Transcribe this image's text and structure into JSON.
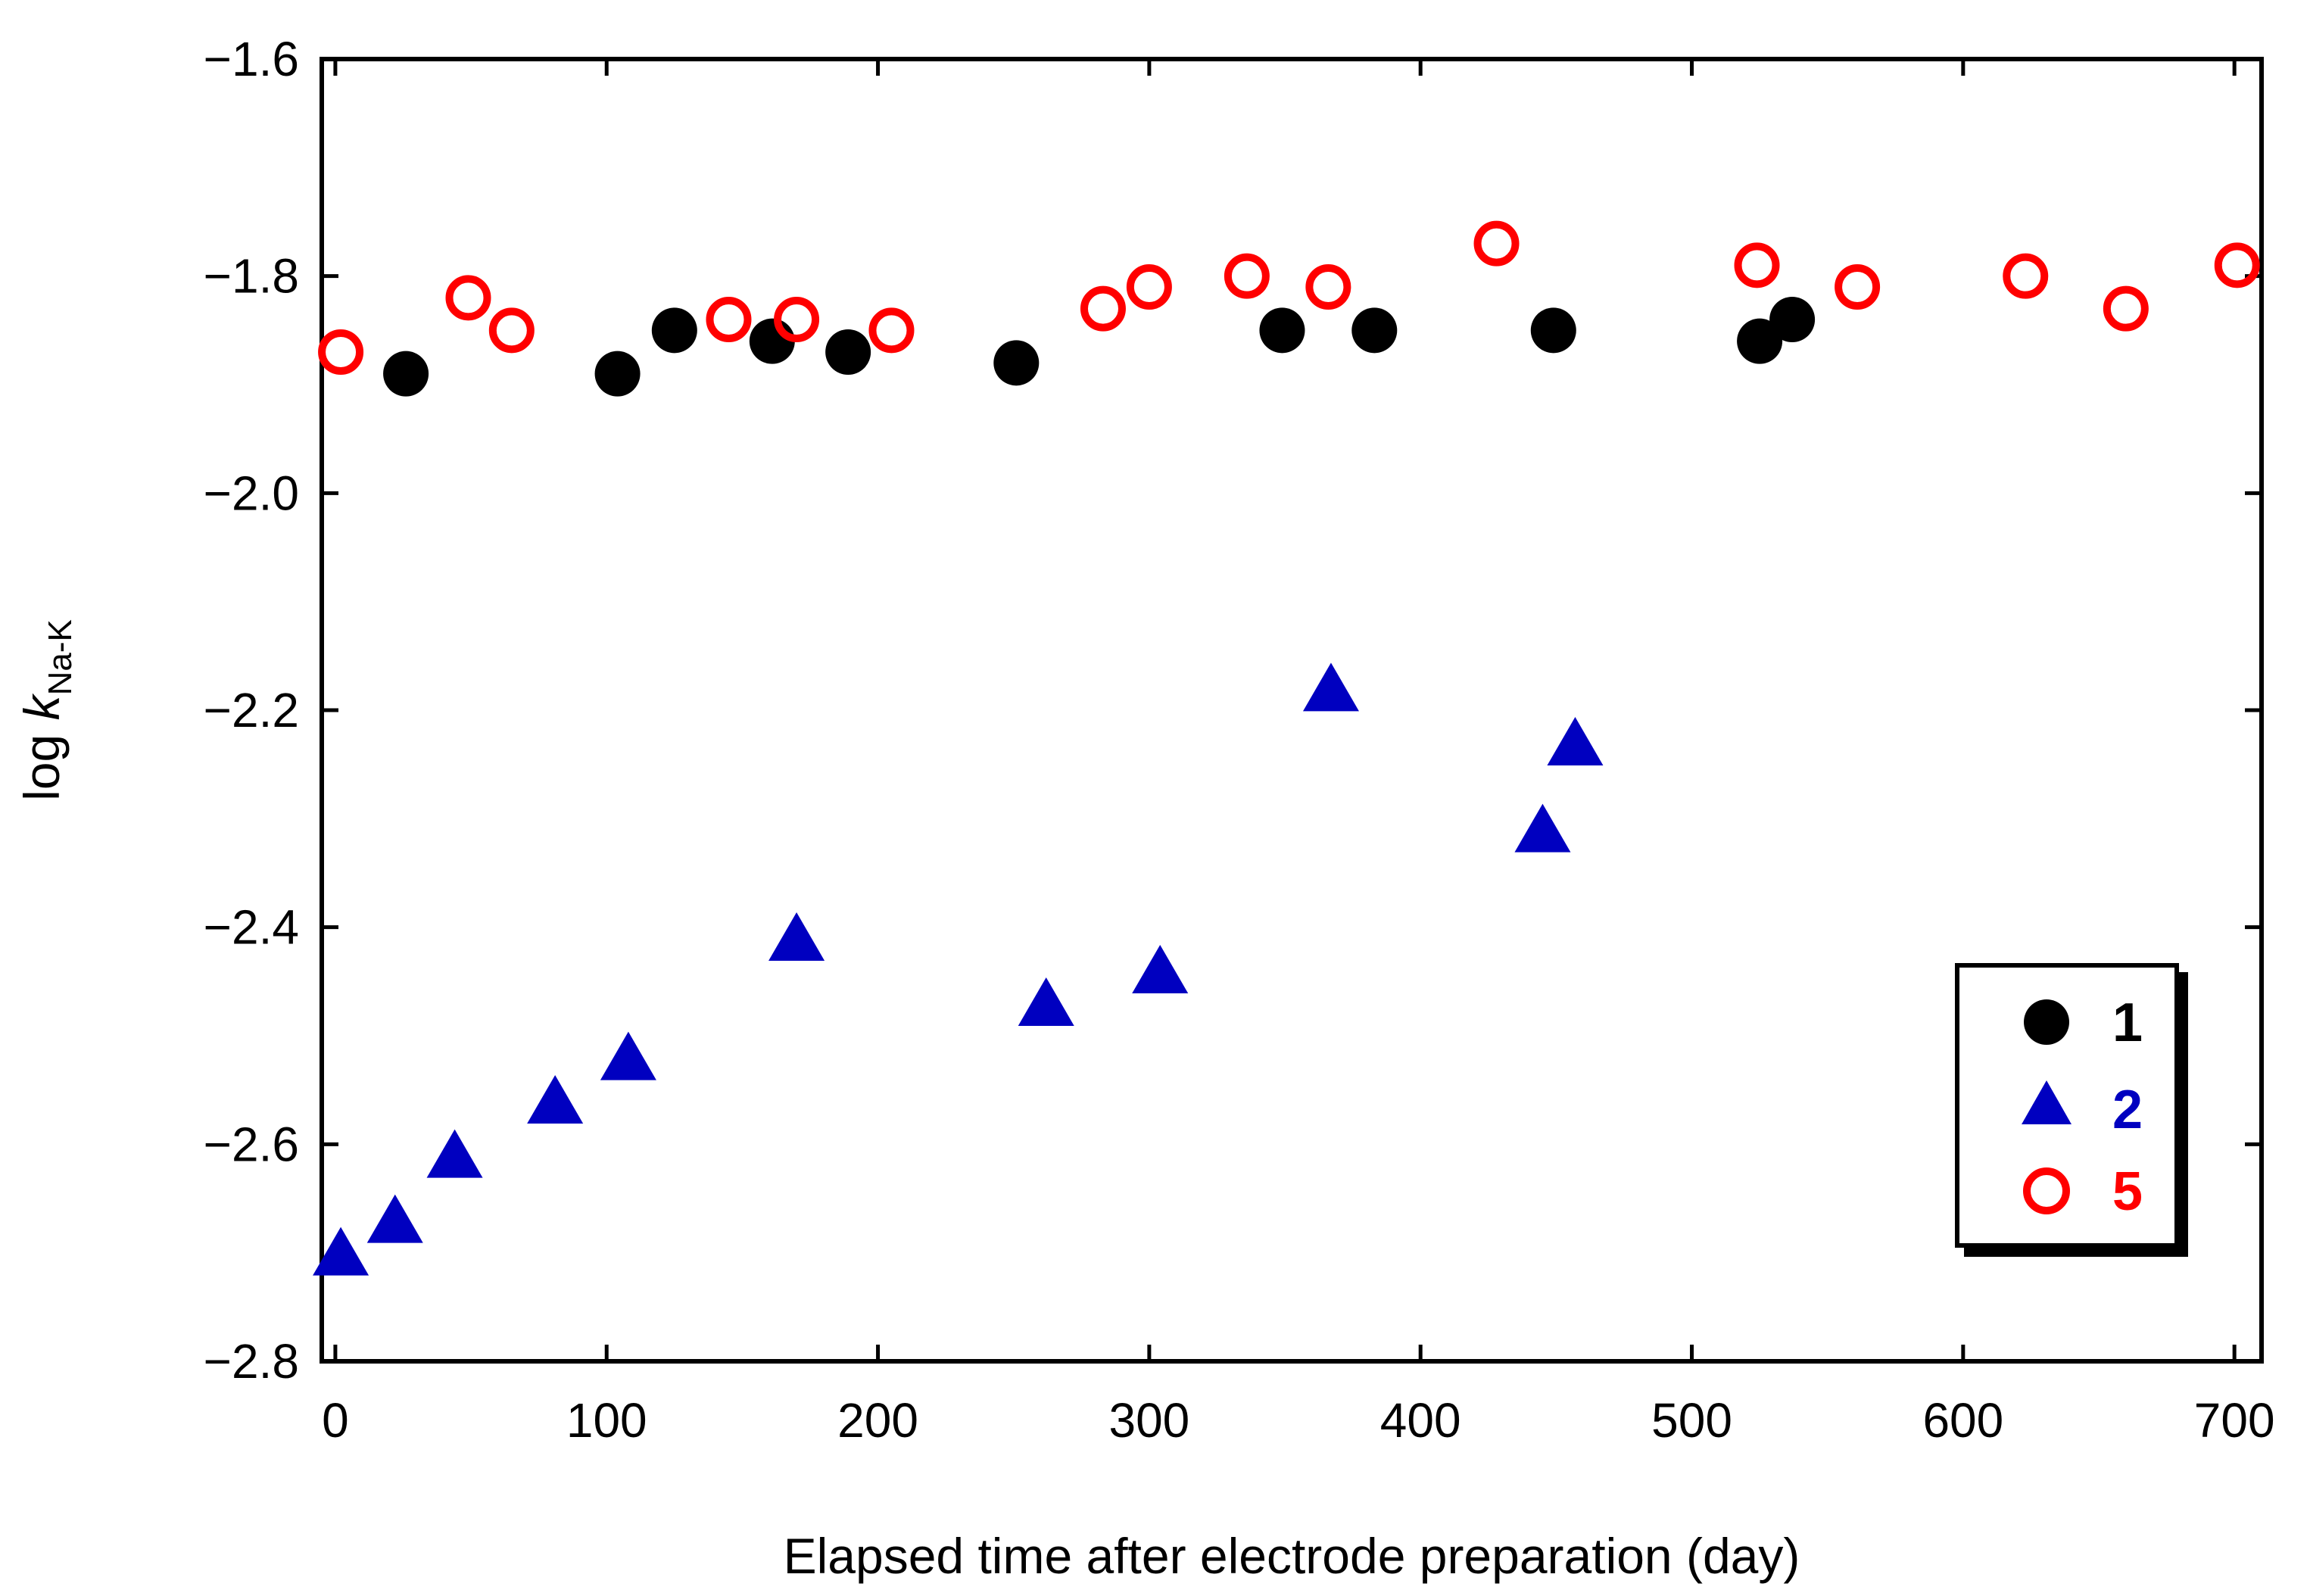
{
  "chart_data": {
    "type": "scatter",
    "title": "",
    "xlabel": "Elapsed time after electrode preparation (day)",
    "ylabel": {
      "prefix": "log ",
      "variable": "k",
      "subscript": "Na-K"
    },
    "xlim": [
      -5,
      710
    ],
    "ylim": [
      -2.8,
      -1.6
    ],
    "xticks": [
      0,
      100,
      200,
      300,
      400,
      500,
      600,
      700
    ],
    "yticks": [
      -2.8,
      -2.6,
      -2.4,
      -2.2,
      -2.0,
      -1.8,
      -1.6
    ],
    "xtick_labels": [
      "0",
      "100",
      "200",
      "300",
      "400",
      "500",
      "600",
      "700"
    ],
    "ytick_labels": [
      "−2.8",
      "−2.6",
      "−2.4",
      "−2.2",
      "−2.0",
      "−1.8",
      "−1.6"
    ],
    "grid": false,
    "legend_position": "bottom-right",
    "series": [
      {
        "name": "1",
        "marker": "filled-circle",
        "color": "#000000",
        "x": [
          26,
          104,
          125,
          161,
          189,
          251,
          349,
          383,
          449,
          525,
          537
        ],
        "y": [
          -1.89,
          -1.89,
          -1.85,
          -1.86,
          -1.87,
          -1.88,
          -1.85,
          -1.85,
          -1.85,
          -1.86,
          -1.84
        ]
      },
      {
        "name": "2",
        "marker": "filled-triangle",
        "color": "#0000c0",
        "x": [
          2,
          22,
          44,
          81,
          108,
          170,
          262,
          304,
          367,
          445,
          457
        ],
        "y": [
          -2.7,
          -2.67,
          -2.61,
          -2.56,
          -2.52,
          -2.41,
          -2.47,
          -2.44,
          -2.18,
          -2.31,
          -2.23
        ]
      },
      {
        "name": "5",
        "marker": "open-circle",
        "color": "#ff0000",
        "x": [
          2,
          49,
          65,
          145,
          170,
          205,
          283,
          300,
          336,
          366,
          428,
          524,
          561,
          623,
          660,
          701
        ],
        "y": [
          -1.87,
          -1.82,
          -1.85,
          -1.84,
          -1.84,
          -1.85,
          -1.83,
          -1.81,
          -1.8,
          -1.81,
          -1.77,
          -1.79,
          -1.81,
          -1.8,
          -1.83,
          -1.79
        ]
      }
    ]
  }
}
